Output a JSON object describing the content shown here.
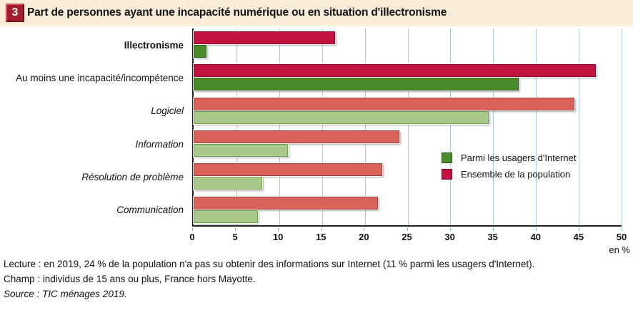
{
  "header": {
    "figure_number": "3",
    "title": "Part de personnes ayant une incapacité numérique ou en situation d'illectronisme"
  },
  "chart_data": {
    "type": "bar",
    "orientation": "horizontal",
    "title": "Part de personnes ayant une incapacité numérique ou en situation d'illectronisme",
    "categories": [
      "Illectronisme",
      "Au moins une incapacité/incompétence",
      "Logiciel",
      "Information",
      "Résolution de problème",
      "Communication"
    ],
    "category_styles": [
      "bold",
      "normal",
      "italic",
      "italic",
      "italic",
      "italic"
    ],
    "emphasis_rows": [
      0,
      1
    ],
    "series": [
      {
        "name": "Ensemble de la population",
        "values": [
          16.5,
          47,
          44.5,
          24,
          22,
          21.5
        ]
      },
      {
        "name": "Parmi les usagers d'Internet",
        "values": [
          1.5,
          38,
          34.5,
          11,
          8,
          7.5
        ]
      }
    ],
    "legend": [
      {
        "label": "Parmi les usagers d'Internet",
        "color": "#4a8a2c",
        "border": "#2f5c14"
      },
      {
        "label": "Ensemble de la population",
        "color": "#c41240",
        "border": "#7c0926"
      }
    ],
    "xlim": [
      0,
      50
    ],
    "xticks": [
      0,
      5,
      10,
      15,
      20,
      25,
      30,
      35,
      40,
      45,
      50
    ],
    "axis_unit_label": "en %",
    "style": {
      "ensemble_emphasis_fill": "#c41240",
      "ensemble_emphasis_border": "#8c0a2c",
      "ensemble_fill": "#d9635a",
      "ensemble_border": "#aa3d36",
      "usagers_emphasis_fill": "#4a8a2c",
      "usagers_emphasis_border": "#2f5c14",
      "usagers_fill": "#a9c88b",
      "usagers_border": "#74a04c",
      "gridline": "#a6c8e0",
      "axis": "#222222",
      "header_band": "#fbecd9",
      "badge": "#a81a2f"
    }
  },
  "footer": {
    "lecture": "Lecture : en 2019, 24 % de la population n'a pas su obtenir des informations sur Internet (11 % parmi les usagers d'Internet).",
    "champ": "Champ : individus de 15 ans ou plus, France hors Mayotte.",
    "source": "Source : TIC ménages 2019."
  }
}
